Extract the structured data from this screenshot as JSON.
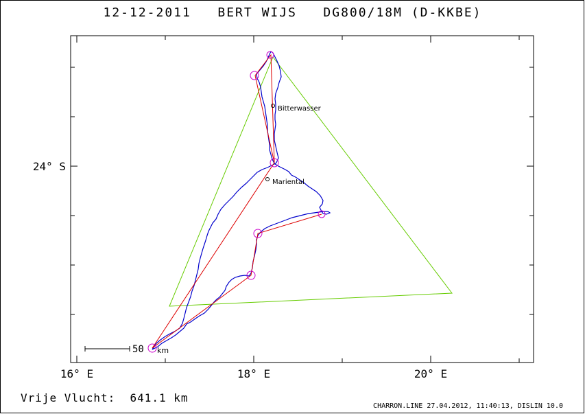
{
  "header": {
    "title": "12-12-2011   BERT WIJS   DG800/18M (D-KKBE)"
  },
  "summary": {
    "distance_label": "Vrije Vlucht:  641.1 km"
  },
  "footer": {
    "credit": "CHARRON.LINE 27.04.2012, 11:40:13, DISLIN 10.0"
  },
  "map": {
    "x_ticks": [
      "16° E",
      "18° E",
      "20° E"
    ],
    "y_ticks": [
      "24° S"
    ],
    "places": [
      {
        "name": "Bitterwasser"
      },
      {
        "name": "Mariental"
      }
    ],
    "scale_bar": {
      "value": "50",
      "unit": "km"
    },
    "colors": {
      "track": "#0000cc",
      "route": "#dd0000",
      "triangle": "#66cc00",
      "turnpoint": "#cc00cc"
    }
  }
}
